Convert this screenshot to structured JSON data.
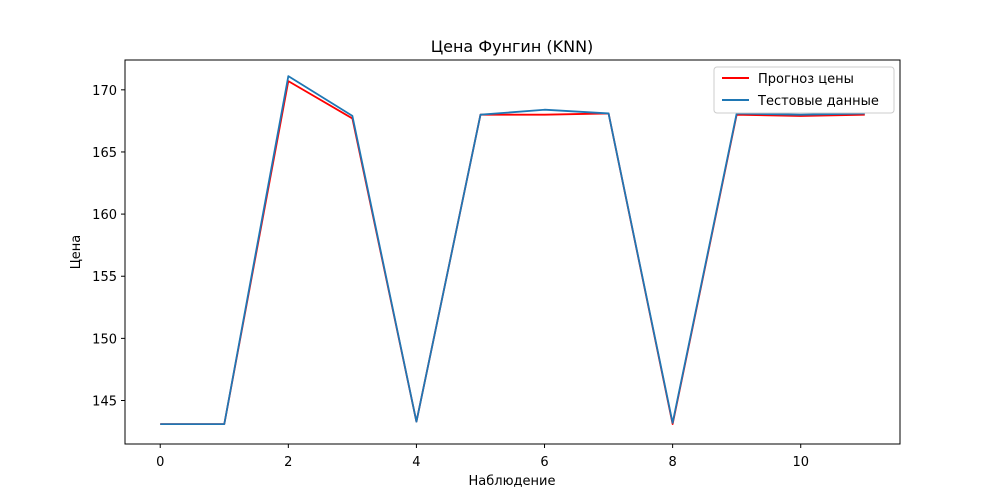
{
  "chart_data": {
    "type": "line",
    "title": "Цена Фунгин  (KNN)",
    "xlabel": "Наблюдение",
    "ylabel": "Цена",
    "xlim": [
      -0.55,
      11.55
    ],
    "ylim": [
      141.5,
      172.4
    ],
    "xticks": [
      0,
      2,
      4,
      6,
      8,
      10
    ],
    "yticks": [
      145,
      150,
      155,
      160,
      165,
      170
    ],
    "grid": false,
    "legend_position": "top-right",
    "x": [
      0,
      1,
      2,
      3,
      4,
      5,
      6,
      7,
      8,
      9,
      10,
      11
    ],
    "series": [
      {
        "name": "Прогноз цены",
        "color": "#ff0000",
        "values": [
          143.1,
          143.1,
          170.7,
          167.7,
          143.3,
          168.0,
          168.0,
          168.1,
          143.1,
          168.0,
          167.9,
          168.0
        ]
      },
      {
        "name": "Тестовые данные",
        "color": "#1f77b4",
        "values": [
          143.1,
          143.1,
          171.1,
          167.9,
          143.3,
          168.0,
          168.4,
          168.1,
          143.2,
          168.1,
          168.0,
          168.1
        ]
      }
    ]
  }
}
